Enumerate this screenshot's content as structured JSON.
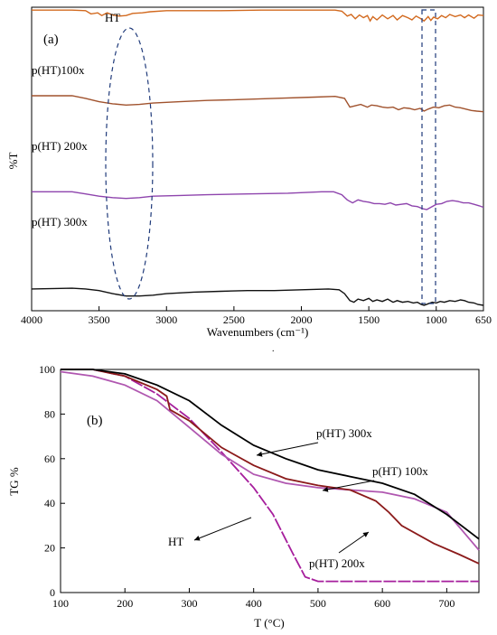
{
  "chart_data": [
    {
      "panel_label": "(a)",
      "type": "line",
      "xlabel": "Wavenumbers (cm⁻¹)",
      "ylabel": "%T",
      "xlim": [
        4000,
        650
      ],
      "x_ticks": [
        4000,
        3500,
        3000,
        2500,
        2000,
        1500,
        1000,
        650
      ],
      "x_tick_labels": [
        "4000",
        "3500",
        "3000",
        "2500",
        "2000",
        "1500",
        "1000",
        "650"
      ],
      "ylim": [
        0,
        100
      ],
      "series": [
        {
          "name": "HT",
          "color": "#d2691e",
          "points": [
            [
              4000,
              98
            ],
            [
              3700,
              98
            ],
            [
              3600,
              97
            ],
            [
              3560,
              91
            ],
            [
              3510,
              93
            ],
            [
              3480,
              88
            ],
            [
              3440,
              93
            ],
            [
              3400,
              89
            ],
            [
              3350,
              87
            ],
            [
              3300,
              88
            ],
            [
              3250,
              92
            ],
            [
              3180,
              93
            ],
            [
              3120,
              95
            ],
            [
              3000,
              97
            ],
            [
              2600,
              97
            ],
            [
              2300,
              98
            ],
            [
              2000,
              98
            ],
            [
              1750,
              98
            ],
            [
              1700,
              96
            ],
            [
              1660,
              87
            ],
            [
              1630,
              90
            ],
            [
              1600,
              82
            ],
            [
              1570,
              89
            ],
            [
              1540,
              84
            ],
            [
              1510,
              88
            ],
            [
              1490,
              78
            ],
            [
              1470,
              86
            ],
            [
              1440,
              80
            ],
            [
              1400,
              89
            ],
            [
              1360,
              82
            ],
            [
              1320,
              88
            ],
            [
              1290,
              80
            ],
            [
              1250,
              88
            ],
            [
              1210,
              84
            ],
            [
              1180,
              80
            ],
            [
              1150,
              87
            ],
            [
              1120,
              83
            ],
            [
              1090,
              78
            ],
            [
              1060,
              86
            ],
            [
              1040,
              79
            ],
            [
              1020,
              85
            ],
            [
              990,
              82
            ],
            [
              960,
              88
            ],
            [
              930,
              84
            ],
            [
              900,
              90
            ],
            [
              860,
              86
            ],
            [
              820,
              89
            ],
            [
              790,
              84
            ],
            [
              760,
              89
            ],
            [
              720,
              83
            ],
            [
              690,
              89
            ],
            [
              650,
              88
            ]
          ]
        },
        {
          "name": "p(HT)100x",
          "color": "#a0522d",
          "points": [
            [
              4000,
              73
            ],
            [
              3700,
              73
            ],
            [
              3600,
              69
            ],
            [
              3500,
              64
            ],
            [
              3400,
              61
            ],
            [
              3300,
              59
            ],
            [
              3200,
              60
            ],
            [
              3100,
              62
            ],
            [
              2900,
              64
            ],
            [
              2700,
              66
            ],
            [
              2500,
              67
            ],
            [
              2200,
              69
            ],
            [
              1900,
              71
            ],
            [
              1750,
              72
            ],
            [
              1680,
              69
            ],
            [
              1640,
              56
            ],
            [
              1600,
              58
            ],
            [
              1560,
              60
            ],
            [
              1510,
              56
            ],
            [
              1480,
              59
            ],
            [
              1440,
              58
            ],
            [
              1400,
              56
            ],
            [
              1360,
              55
            ],
            [
              1320,
              56
            ],
            [
              1280,
              52
            ],
            [
              1240,
              55
            ],
            [
              1200,
              54
            ],
            [
              1160,
              52
            ],
            [
              1120,
              54
            ],
            [
              1090,
              50
            ],
            [
              1060,
              53
            ],
            [
              1020,
              56
            ],
            [
              980,
              55
            ],
            [
              940,
              58
            ],
            [
              900,
              59
            ],
            [
              860,
              56
            ],
            [
              820,
              55
            ],
            [
              780,
              53
            ],
            [
              740,
              51
            ],
            [
              700,
              50
            ],
            [
              650,
              49
            ]
          ]
        },
        {
          "name": "p(HT) 200x",
          "color": "#8e44ad",
          "points": [
            [
              4000,
              46
            ],
            [
              3700,
              46
            ],
            [
              3600,
              43
            ],
            [
              3500,
              40
            ],
            [
              3400,
              38
            ],
            [
              3300,
              37
            ],
            [
              3200,
              38
            ],
            [
              3100,
              40
            ],
            [
              2900,
              41
            ],
            [
              2700,
              42
            ],
            [
              2400,
              43
            ],
            [
              2100,
              44
            ],
            [
              1850,
              46
            ],
            [
              1760,
              46
            ],
            [
              1700,
              42
            ],
            [
              1660,
              35
            ],
            [
              1620,
              31
            ],
            [
              1580,
              35
            ],
            [
              1540,
              33
            ],
            [
              1500,
              32
            ],
            [
              1460,
              30
            ],
            [
              1420,
              30
            ],
            [
              1380,
              29
            ],
            [
              1340,
              31
            ],
            [
              1300,
              28
            ],
            [
              1260,
              29
            ],
            [
              1220,
              30
            ],
            [
              1180,
              27
            ],
            [
              1140,
              26
            ],
            [
              1100,
              23
            ],
            [
              1070,
              22
            ],
            [
              1040,
              25
            ],
            [
              1000,
              29
            ],
            [
              960,
              30
            ],
            [
              920,
              33
            ],
            [
              880,
              34
            ],
            [
              840,
              33
            ],
            [
              800,
              31
            ],
            [
              760,
              31
            ],
            [
              720,
              29
            ],
            [
              680,
              27
            ],
            [
              650,
              25
            ]
          ]
        },
        {
          "name": "p(HT) 300x",
          "color": "#111111",
          "points": [
            [
              4000,
              21
            ],
            [
              3700,
              22
            ],
            [
              3600,
              21
            ],
            [
              3500,
              19
            ],
            [
              3400,
              15
            ],
            [
              3300,
              12
            ],
            [
              3200,
              12
            ],
            [
              3100,
              13
            ],
            [
              3000,
              15
            ],
            [
              2800,
              17
            ],
            [
              2600,
              18
            ],
            [
              2400,
              19
            ],
            [
              2200,
              19
            ],
            [
              2000,
              20
            ],
            [
              1800,
              21
            ],
            [
              1720,
              20
            ],
            [
              1680,
              15
            ],
            [
              1640,
              6
            ],
            [
              1610,
              4
            ],
            [
              1580,
              8
            ],
            [
              1540,
              6
            ],
            [
              1500,
              9
            ],
            [
              1470,
              5
            ],
            [
              1440,
              7
            ],
            [
              1400,
              5
            ],
            [
              1360,
              8
            ],
            [
              1320,
              4
            ],
            [
              1290,
              6
            ],
            [
              1250,
              4
            ],
            [
              1210,
              5
            ],
            [
              1170,
              3
            ],
            [
              1140,
              4
            ],
            [
              1110,
              1
            ],
            [
              1090,
              0
            ],
            [
              1060,
              2
            ],
            [
              1030,
              4
            ],
            [
              1000,
              3
            ],
            [
              970,
              5
            ],
            [
              940,
              4
            ],
            [
              900,
              6
            ],
            [
              860,
              5
            ],
            [
              820,
              7
            ],
            [
              790,
              6
            ],
            [
              760,
              4
            ],
            [
              720,
              3
            ],
            [
              690,
              1
            ],
            [
              650,
              0
            ]
          ]
        }
      ]
    },
    {
      "panel_label": "(b)",
      "type": "line",
      "xlabel": "T (°C)",
      "ylabel": "TG %",
      "xlim": [
        100,
        750
      ],
      "ylim": [
        0,
        100
      ],
      "x_ticks": [
        100,
        200,
        300,
        400,
        500,
        600,
        700
      ],
      "y_ticks": [
        0,
        20,
        40,
        60,
        80,
        100
      ],
      "series": [
        {
          "name": "HT",
          "color": "#a61e9c",
          "points": [
            [
              100,
              100
            ],
            [
              150,
              100
            ],
            [
              200,
              97
            ],
            [
              250,
              89
            ],
            [
              300,
              78
            ],
            [
              350,
              63
            ],
            [
              400,
              47
            ],
            [
              430,
              35
            ],
            [
              460,
              18
            ],
            [
              480,
              7
            ],
            [
              500,
              5
            ],
            [
              600,
              5
            ],
            [
              700,
              5
            ],
            [
              750,
              5
            ]
          ]
        },
        {
          "name": "p(HT) 100x",
          "color": "#b057b0",
          "points": [
            [
              100,
              99
            ],
            [
              150,
              97
            ],
            [
              200,
              93
            ],
            [
              250,
              86
            ],
            [
              300,
              74
            ],
            [
              350,
              62
            ],
            [
              400,
              53
            ],
            [
              450,
              49
            ],
            [
              500,
              47
            ],
            [
              550,
              46
            ],
            [
              600,
              45
            ],
            [
              650,
              42
            ],
            [
              700,
              36
            ],
            [
              750,
              19
            ]
          ]
        },
        {
          "name": "p(HT) 200x",
          "color": "#8b1a1a",
          "points": [
            [
              100,
              100
            ],
            [
              150,
              100
            ],
            [
              200,
              97
            ],
            [
              250,
              91
            ],
            [
              265,
              88
            ],
            [
              270,
              82
            ],
            [
              300,
              77
            ],
            [
              350,
              65
            ],
            [
              400,
              57
            ],
            [
              450,
              51
            ],
            [
              500,
              48
            ],
            [
              550,
              46
            ],
            [
              590,
              41
            ],
            [
              610,
              36
            ],
            [
              630,
              30
            ],
            [
              680,
              22
            ],
            [
              720,
              17
            ],
            [
              750,
              13
            ]
          ]
        },
        {
          "name": "p(HT) 300x",
          "color": "#000000",
          "points": [
            [
              100,
              100
            ],
            [
              150,
              100
            ],
            [
              200,
              98
            ],
            [
              250,
              93
            ],
            [
              300,
              86
            ],
            [
              350,
              75
            ],
            [
              400,
              66
            ],
            [
              450,
              60
            ],
            [
              500,
              55
            ],
            [
              550,
              52
            ],
            [
              600,
              49
            ],
            [
              650,
              44
            ],
            [
              700,
              35
            ],
            [
              750,
              24
            ]
          ]
        }
      ]
    }
  ]
}
